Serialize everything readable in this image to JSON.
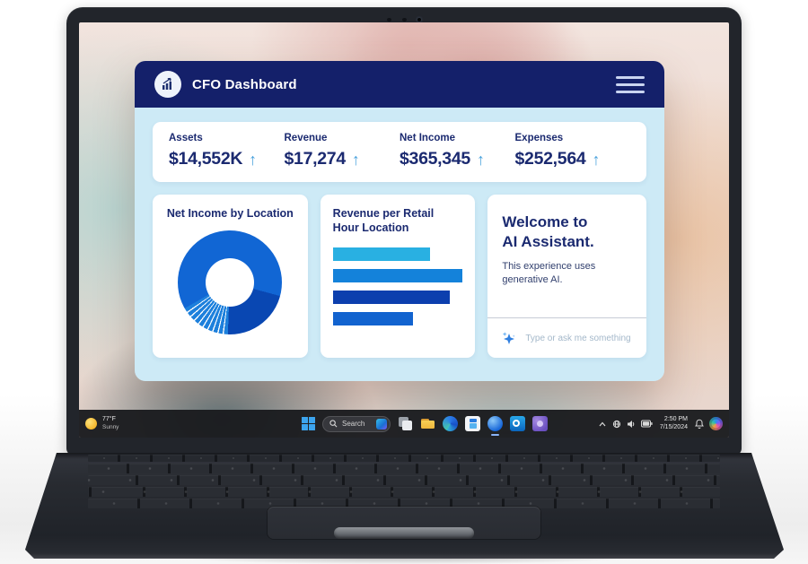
{
  "app": {
    "title": "CFO Dashboard"
  },
  "kpis": [
    {
      "label": "Assets",
      "value": "$14,552K",
      "trend_icon": "↑"
    },
    {
      "label": "Revenue",
      "value": "$17,274",
      "trend_icon": "↑"
    },
    {
      "label": "Net Income",
      "value": "$365,345",
      "trend_icon": "↑"
    },
    {
      "label": "Expenses",
      "value": "$252,564",
      "trend_icon": "↑"
    }
  ],
  "cards": {
    "net_income": {
      "title": "Net Income by Location"
    },
    "revenue": {
      "title": "Revenue per Retail Hour Location"
    },
    "assistant": {
      "title_lines": [
        "Welcome to",
        "AI Assistant."
      ],
      "subtitle": "This experience uses generative AI.",
      "placeholder": "Type or ask me something"
    }
  },
  "chart_data": [
    {
      "type": "pie",
      "style": "donut",
      "title": "Net Income by Location",
      "legend": false,
      "segments": [
        {
          "label": "segment-main-right",
          "pct": 29.2,
          "color": "#1166d4"
        },
        {
          "label": "segment-dark",
          "pct": 21.4,
          "color": "#0947b2"
        },
        {
          "label": "sliver-1",
          "pct": 1.25,
          "color": "#1d80dc"
        },
        {
          "label": "separator",
          "pct": 0.4,
          "color": "#ffffff"
        },
        {
          "label": "sliver-2",
          "pct": 1.25,
          "color": "#1d80dc"
        },
        {
          "label": "separator",
          "pct": 0.4,
          "color": "#ffffff"
        },
        {
          "label": "sliver-3",
          "pct": 1.25,
          "color": "#1d80dc"
        },
        {
          "label": "separator",
          "pct": 0.4,
          "color": "#ffffff"
        },
        {
          "label": "sliver-4",
          "pct": 1.25,
          "color": "#1d80dc"
        },
        {
          "label": "separator",
          "pct": 0.4,
          "color": "#ffffff"
        },
        {
          "label": "sliver-5",
          "pct": 1.25,
          "color": "#1d80dc"
        },
        {
          "label": "separator",
          "pct": 0.4,
          "color": "#ffffff"
        },
        {
          "label": "sliver-6",
          "pct": 1.25,
          "color": "#1d80dc"
        },
        {
          "label": "separator",
          "pct": 0.4,
          "color": "#ffffff"
        },
        {
          "label": "sliver-7",
          "pct": 1.25,
          "color": "#1d80dc"
        },
        {
          "label": "separator",
          "pct": 0.4,
          "color": "#ffffff"
        },
        {
          "label": "sliver-8",
          "pct": 1.25,
          "color": "#1d80dc"
        },
        {
          "label": "separator",
          "pct": 0.4,
          "color": "#ffffff"
        },
        {
          "label": "sliver-9",
          "pct": 1.25,
          "color": "#1d80dc"
        },
        {
          "label": "separator",
          "pct": 0.4,
          "color": "#ffffff"
        },
        {
          "label": "sliver-10",
          "pct": 1.25,
          "color": "#1d80dc"
        },
        {
          "label": "segment-main-top",
          "pct": 33.3,
          "color": "#1166d4"
        }
      ]
    },
    {
      "type": "bar",
      "orientation": "horizontal",
      "title": "Revenue per Retail Hour Location",
      "categories": [
        "bar-1",
        "bar-2",
        "bar-3",
        "bar-4"
      ],
      "values": [
        75,
        100,
        90,
        62
      ],
      "colors": [
        "#29b0e2",
        "#1482da",
        "#0c3fae",
        "#1263cf"
      ],
      "value_unit": "relative-width-percent",
      "axes": "hidden"
    }
  ],
  "taskbar": {
    "weather": {
      "temp": "77°F",
      "condition": "Sunny"
    },
    "search": {
      "placeholder": "Search"
    },
    "tray": {
      "time": "2:50 PM",
      "date": "7/15/2024"
    }
  },
  "colors": {
    "header_navy": "#14206a",
    "body_blue": "#cdeaf6",
    "text_navy": "#1b2a70",
    "arrow_blue": "#4aa2dd"
  }
}
